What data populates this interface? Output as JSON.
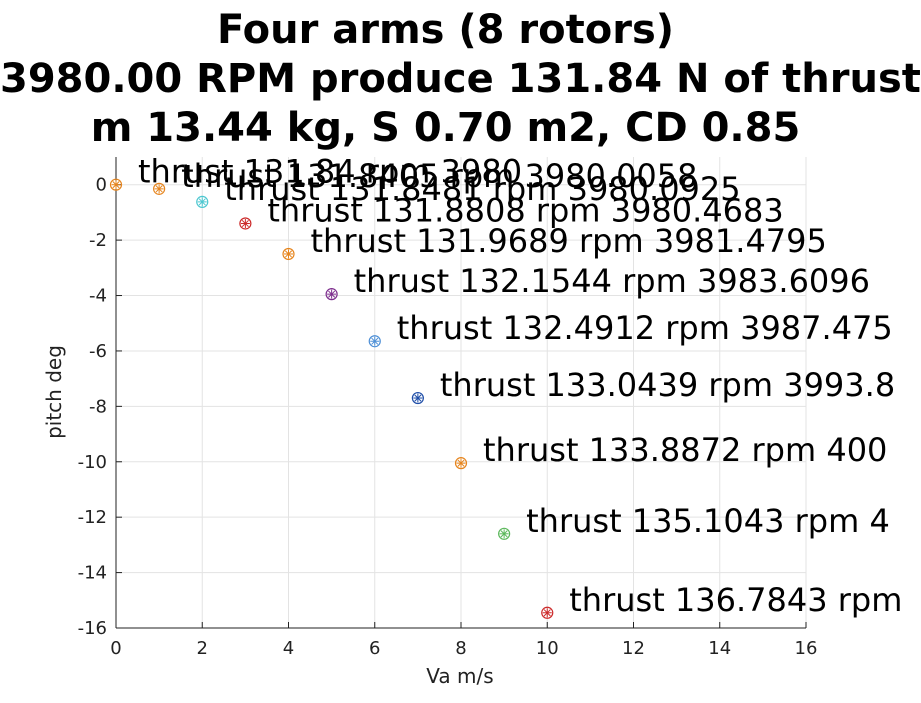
{
  "chart_data": {
    "type": "scatter",
    "title_lines": [
      "Four arms (8 rotors)",
      "3980.00 RPM produce 131.84 N of thrust",
      "m 13.44 kg, S 0.70 m2, CD 0.85"
    ],
    "xlabel": "Va m/s",
    "ylabel": "pitch deg",
    "xlim": [
      0,
      16
    ],
    "ylim": [
      -16,
      1
    ],
    "xticks": [
      0,
      2,
      4,
      6,
      8,
      10,
      12,
      14,
      16
    ],
    "yticks": [
      0,
      -2,
      -4,
      -6,
      -8,
      -10,
      -12,
      -14,
      -16
    ],
    "grid": true,
    "points": [
      {
        "x": 0,
        "y": 0.0,
        "label": "thrust 131.84 rpm 3980",
        "color": "#e6851e"
      },
      {
        "x": 1,
        "y": -0.15,
        "label": "thrust 131.8405 rpm 3980.0058",
        "color": "#e6851e"
      },
      {
        "x": 2,
        "y": -0.62,
        "label": "thrust 131.8481 rpm 3980.0925",
        "color": "#4cc7d0"
      },
      {
        "x": 3,
        "y": -1.4,
        "label": "thrust 131.8808 rpm 3980.4683",
        "color": "#cc2a2a"
      },
      {
        "x": 4,
        "y": -2.5,
        "label": "thrust 131.9689 rpm 3981.4795",
        "color": "#e6851e"
      },
      {
        "x": 5,
        "y": -3.95,
        "label": "thrust 132.1544 rpm 3983.6096",
        "color": "#7e2f8e"
      },
      {
        "x": 6,
        "y": -5.65,
        "label": "thrust 132.4912 rpm 3987.475",
        "color": "#4d8fd6"
      },
      {
        "x": 7,
        "y": -7.7,
        "label": "thrust 133.0439 rpm 3993.8",
        "color": "#1f4ea8"
      },
      {
        "x": 8,
        "y": -10.05,
        "label": "thrust 133.8872 rpm 400",
        "color": "#e6851e"
      },
      {
        "x": 9,
        "y": -12.6,
        "label": "thrust 135.1043 rpm 4",
        "color": "#5cb85c"
      },
      {
        "x": 10,
        "y": -15.45,
        "label": "thrust 136.7843 rpm",
        "color": "#cc2a2a"
      }
    ]
  }
}
